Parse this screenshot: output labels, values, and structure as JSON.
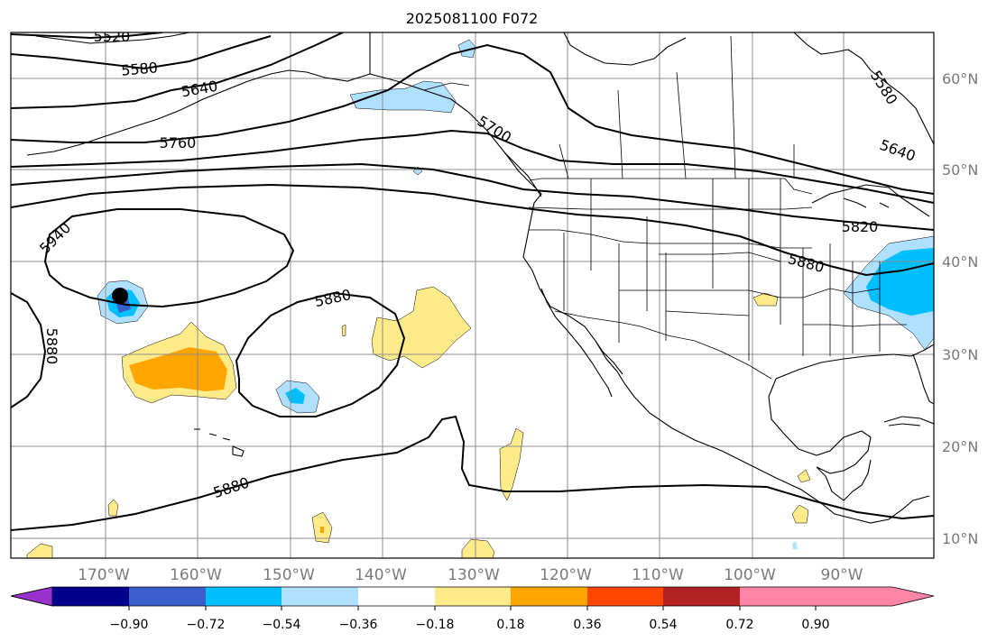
{
  "title": "2025081100 F072",
  "lon_labels": [
    "170°W",
    "160°W",
    "150°W",
    "140°W",
    "130°W",
    "120°W",
    "110°W",
    "100°W",
    "90°W"
  ],
  "lat_labels": [
    "60°N",
    "50°N",
    "40°N",
    "30°N",
    "20°N",
    "10°N"
  ],
  "contour_labels": [
    "5520",
    "5580",
    "5640",
    "5760",
    "5700",
    "5580",
    "5640",
    "5820",
    "5880",
    "5940",
    "5880",
    "5880",
    "5880"
  ],
  "colorbar": {
    "ticks": [
      "−0.90",
      "−0.72",
      "−0.54",
      "−0.36",
      "−0.18",
      "0.18",
      "0.36",
      "0.54",
      "0.72",
      "0.90"
    ],
    "colors": [
      "#9932cc",
      "#00008b",
      "#3a5fcd",
      "#00bfff",
      "#b0e0ff",
      "#ffffff",
      "#ffeb8a",
      "#ffa500",
      "#ff4500",
      "#b22222",
      "#ff85a8"
    ]
  },
  "colors": {
    "light_blue": "#b0e0ff",
    "blue": "#00bfff",
    "dark_blue": "#3a5fcd",
    "yellow": "#ffeb8a",
    "orange": "#ffa500",
    "marker": "#000000"
  }
}
